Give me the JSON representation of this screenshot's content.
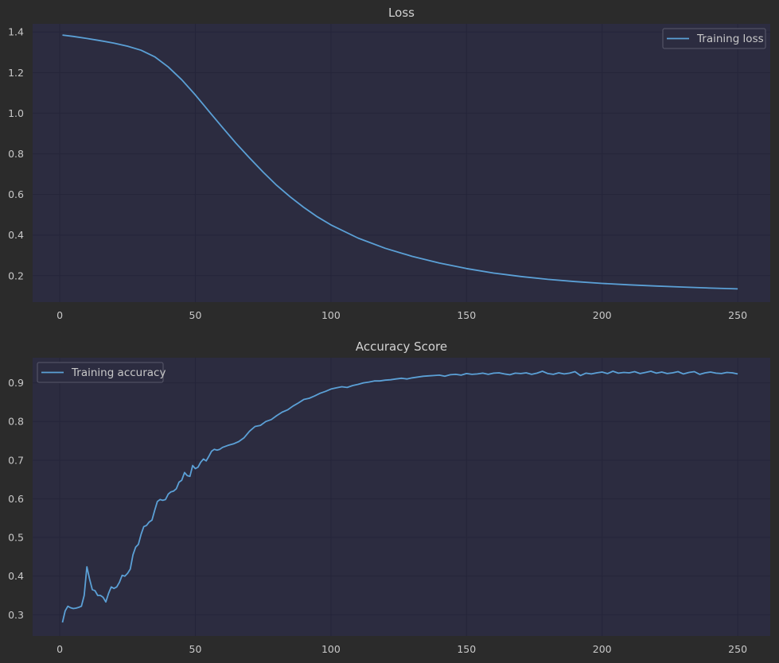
{
  "chart_data": [
    {
      "type": "line",
      "title": "Loss",
      "xlabel": "",
      "ylabel": "",
      "xlim": [
        -10,
        262
      ],
      "ylim": [
        0.07,
        1.44
      ],
      "xticks": [
        0,
        50,
        100,
        150,
        200,
        250
      ],
      "yticks": [
        0.2,
        0.4,
        0.6,
        0.8,
        1.0,
        1.2,
        1.4
      ],
      "ytick_labels": [
        "0.2",
        "0.4",
        "0.6",
        "0.8",
        "1.0",
        "1.2",
        "1.4"
      ],
      "grid": true,
      "legend_position": "upper right",
      "series": [
        {
          "name": "Training loss",
          "color": "#5ba0d6",
          "x": [
            1,
            5,
            10,
            15,
            20,
            25,
            30,
            35,
            40,
            45,
            50,
            55,
            60,
            65,
            70,
            75,
            80,
            85,
            90,
            95,
            100,
            110,
            120,
            130,
            140,
            150,
            160,
            170,
            180,
            190,
            200,
            210,
            220,
            230,
            240,
            250
          ],
          "y": [
            1.385,
            1.378,
            1.368,
            1.357,
            1.345,
            1.33,
            1.31,
            1.278,
            1.228,
            1.165,
            1.09,
            1.01,
            0.93,
            0.852,
            0.78,
            0.71,
            0.645,
            0.588,
            0.536,
            0.49,
            0.45,
            0.385,
            0.335,
            0.295,
            0.262,
            0.235,
            0.213,
            0.196,
            0.182,
            0.171,
            0.162,
            0.155,
            0.149,
            0.144,
            0.139,
            0.135
          ]
        }
      ]
    },
    {
      "type": "line",
      "title": "Accuracy Score",
      "xlabel": "",
      "ylabel": "",
      "xlim": [
        -10,
        262
      ],
      "ylim": [
        0.245,
        0.965
      ],
      "xticks": [
        0,
        50,
        100,
        150,
        200,
        250
      ],
      "yticks": [
        0.3,
        0.4,
        0.5,
        0.6,
        0.7,
        0.8,
        0.9
      ],
      "ytick_labels": [
        "0.3",
        "0.4",
        "0.5",
        "0.6",
        "0.7",
        "0.8",
        "0.9"
      ],
      "grid": true,
      "legend_position": "upper left",
      "series": [
        {
          "name": "Training accuracy",
          "color": "#5ba0d6",
          "x": [
            1,
            2,
            3,
            4,
            5,
            6,
            7,
            8,
            9,
            10,
            11,
            12,
            13,
            14,
            15,
            16,
            17,
            18,
            19,
            20,
            21,
            22,
            23,
            24,
            25,
            26,
            27,
            28,
            29,
            30,
            31,
            32,
            33,
            34,
            35,
            36,
            37,
            38,
            39,
            40,
            41,
            42,
            43,
            44,
            45,
            46,
            47,
            48,
            49,
            50,
            51,
            52,
            53,
            54,
            55,
            56,
            57,
            58,
            59,
            60,
            62,
            64,
            66,
            68,
            70,
            72,
            74,
            76,
            78,
            80,
            82,
            84,
            86,
            88,
            90,
            92,
            94,
            96,
            98,
            100,
            102,
            104,
            106,
            108,
            110,
            112,
            114,
            116,
            118,
            120,
            122,
            124,
            126,
            128,
            130,
            132,
            134,
            136,
            138,
            140,
            142,
            144,
            146,
            148,
            150,
            152,
            154,
            156,
            158,
            160,
            162,
            164,
            166,
            168,
            170,
            172,
            174,
            176,
            178,
            180,
            182,
            184,
            186,
            188,
            190,
            192,
            194,
            196,
            198,
            200,
            202,
            204,
            206,
            208,
            210,
            212,
            214,
            216,
            218,
            220,
            222,
            224,
            226,
            228,
            230,
            232,
            234,
            236,
            238,
            240,
            242,
            244,
            246,
            248,
            250
          ],
          "y": [
            0.28,
            0.31,
            0.322,
            0.318,
            0.316,
            0.317,
            0.319,
            0.322,
            0.35,
            0.424,
            0.392,
            0.365,
            0.362,
            0.35,
            0.35,
            0.345,
            0.333,
            0.355,
            0.372,
            0.368,
            0.372,
            0.384,
            0.402,
            0.4,
            0.407,
            0.418,
            0.455,
            0.475,
            0.482,
            0.508,
            0.528,
            0.531,
            0.54,
            0.545,
            0.57,
            0.593,
            0.598,
            0.596,
            0.598,
            0.612,
            0.618,
            0.62,
            0.626,
            0.643,
            0.648,
            0.668,
            0.66,
            0.658,
            0.686,
            0.678,
            0.682,
            0.695,
            0.703,
            0.698,
            0.71,
            0.723,
            0.728,
            0.726,
            0.728,
            0.733,
            0.738,
            0.742,
            0.748,
            0.758,
            0.775,
            0.787,
            0.79,
            0.8,
            0.805,
            0.815,
            0.824,
            0.83,
            0.84,
            0.848,
            0.857,
            0.86,
            0.866,
            0.873,
            0.878,
            0.884,
            0.887,
            0.89,
            0.888,
            0.893,
            0.896,
            0.9,
            0.902,
            0.905,
            0.905,
            0.907,
            0.908,
            0.91,
            0.912,
            0.91,
            0.913,
            0.915,
            0.917,
            0.918,
            0.919,
            0.92,
            0.917,
            0.921,
            0.922,
            0.92,
            0.924,
            0.922,
            0.923,
            0.925,
            0.922,
            0.925,
            0.926,
            0.923,
            0.921,
            0.925,
            0.924,
            0.926,
            0.922,
            0.925,
            0.93,
            0.924,
            0.922,
            0.926,
            0.923,
            0.925,
            0.929,
            0.919,
            0.925,
            0.923,
            0.926,
            0.928,
            0.924,
            0.93,
            0.925,
            0.927,
            0.926,
            0.929,
            0.924,
            0.927,
            0.93,
            0.925,
            0.928,
            0.924,
            0.926,
            0.929,
            0.923,
            0.927,
            0.929,
            0.922,
            0.926,
            0.928,
            0.925,
            0.924,
            0.927,
            0.926,
            0.923
          ]
        }
      ]
    }
  ]
}
